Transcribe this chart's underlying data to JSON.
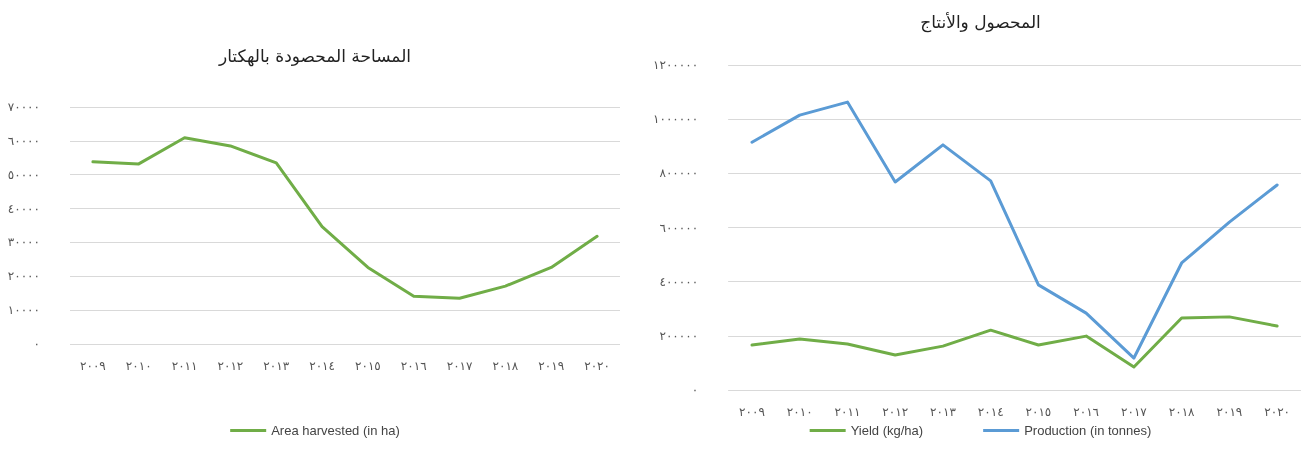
{
  "chart_data": [
    {
      "type": "line",
      "title": "المساحة المحصودة بالهكتار",
      "categories": [
        "٢٠٠٩",
        "٢٠١٠",
        "٢٠١١",
        "٢٠١٢",
        "٢٠١٣",
        "٢٠١٤",
        "٢٠١٥",
        "٢٠١٦",
        "٢٠١٧",
        "٢٠١٨",
        "٢٠١٩",
        "٢٠٢٠"
      ],
      "series": [
        {
          "name": "Area harvested (in ha)",
          "color": "#70ad47",
          "values": [
            53800,
            53200,
            60900,
            58500,
            53500,
            34700,
            22600,
            14100,
            13500,
            17100,
            22600,
            31800
          ]
        }
      ],
      "ylim": [
        0,
        70000
      ],
      "yticks": [
        {
          "value": 0,
          "label": "٠"
        },
        {
          "value": 10000,
          "label": "١٠٠٠٠"
        },
        {
          "value": 20000,
          "label": "٢٠٠٠٠"
        },
        {
          "value": 30000,
          "label": "٣٠٠٠٠"
        },
        {
          "value": 40000,
          "label": "٤٠٠٠٠"
        },
        {
          "value": 50000,
          "label": "٥٠٠٠٠"
        },
        {
          "value": 60000,
          "label": "٦٠٠٠٠"
        },
        {
          "value": 70000,
          "label": "٧٠٠٠٠"
        }
      ],
      "grid": "y",
      "legend": "bottom",
      "marker": "none",
      "line_style": "solid"
    },
    {
      "type": "line",
      "title": "المحصول والأنتاج",
      "categories": [
        "٢٠٠٩",
        "٢٠١٠",
        "٢٠١١",
        "٢٠١٢",
        "٢٠١٣",
        "٢٠١٤",
        "٢٠١٥",
        "٢٠١٦",
        "٢٠١٧",
        "٢٠١٨",
        "٢٠١٩",
        "٢٠٢٠"
      ],
      "series": [
        {
          "name": "Yield (kg/ha)",
          "color": "#70ad47",
          "values": [
            166000,
            188000,
            170000,
            129000,
            162000,
            221000,
            166000,
            199000,
            85000,
            266000,
            270000,
            236000
          ]
        },
        {
          "name": "Production (in tonnes)",
          "color": "#5b9bd5",
          "values": [
            915000,
            1015000,
            1063000,
            768000,
            905000,
            772000,
            388000,
            284000,
            118000,
            469000,
            620000,
            757000
          ]
        }
      ],
      "ylim": [
        0,
        1200000
      ],
      "yticks": [
        {
          "value": 0,
          "label": "٠"
        },
        {
          "value": 200000,
          "label": "٢٠٠٠٠٠"
        },
        {
          "value": 400000,
          "label": "٤٠٠٠٠٠"
        },
        {
          "value": 600000,
          "label": "٦٠٠٠٠٠"
        },
        {
          "value": 800000,
          "label": "٨٠٠٠٠٠"
        },
        {
          "value": 1000000,
          "label": "١٠٠٠٠٠٠"
        },
        {
          "value": 1200000,
          "label": "١٢٠٠٠٠٠"
        }
      ],
      "grid": "y",
      "legend": "bottom",
      "marker": "none",
      "line_style": "solid"
    }
  ]
}
